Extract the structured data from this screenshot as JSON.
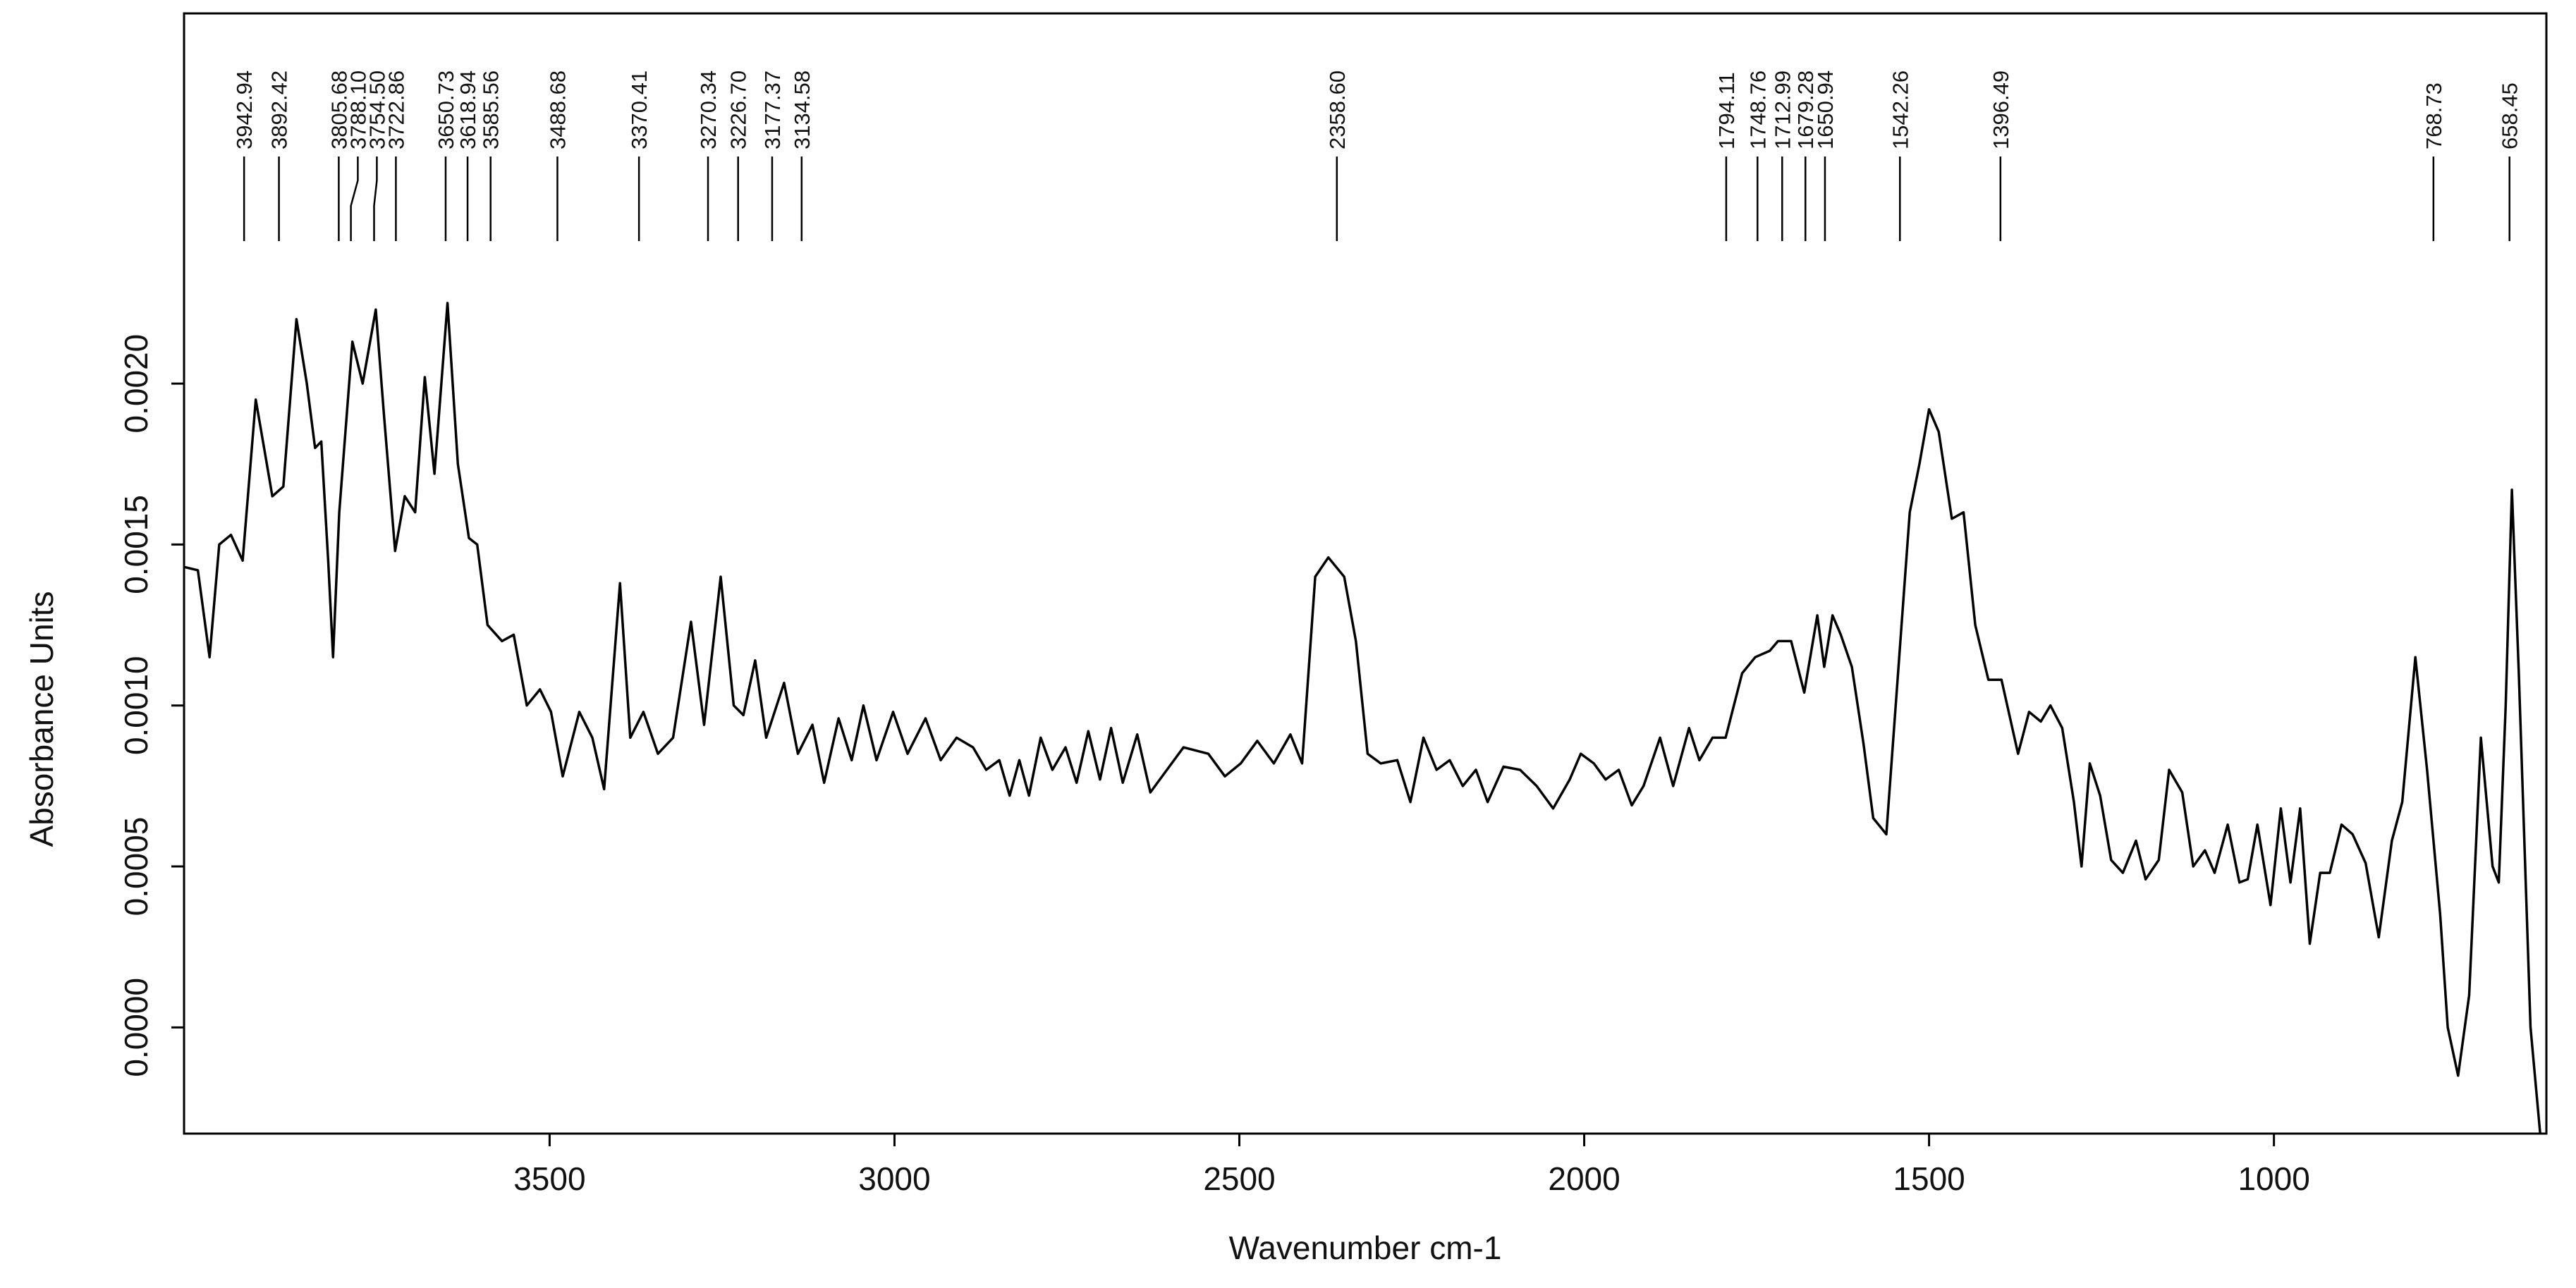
{
  "chart_data": {
    "type": "line",
    "xlabel": "Wavenumber cm-1",
    "ylabel": "Absorbance Units",
    "color": "#000000",
    "xlim": [
      4030,
      605
    ],
    "xticks": [
      3500,
      3000,
      2500,
      2000,
      1500,
      1000
    ],
    "ylim": [
      -0.00033,
      0.00315
    ],
    "yticks": [
      {
        "value": 0,
        "label": "0.0000"
      },
      {
        "value": 0.0005,
        "label": "0.0005"
      },
      {
        "value": 0.001,
        "label": "0.0010"
      },
      {
        "value": 0.0015,
        "label": "0.0015"
      },
      {
        "value": 0.002,
        "label": "0.0020"
      }
    ],
    "grid": false,
    "annotations": [
      {
        "value": 3942.94,
        "label": "3942.94"
      },
      {
        "value": 3892.42,
        "label": "3892.42"
      },
      {
        "value": 3805.68,
        "label": "3805.68"
      },
      {
        "value": 3788.1,
        "label": "3788.10"
      },
      {
        "value": 3754.5,
        "label": "3754.50"
      },
      {
        "value": 3722.86,
        "label": "3722.86"
      },
      {
        "value": 3650.73,
        "label": "3650.73"
      },
      {
        "value": 3618.94,
        "label": "3618.94"
      },
      {
        "value": 3585.56,
        "label": "3585.56"
      },
      {
        "value": 3488.68,
        "label": "3488.68"
      },
      {
        "value": 3370.41,
        "label": "3370.41"
      },
      {
        "value": 3270.34,
        "label": "3270.34"
      },
      {
        "value": 3226.7,
        "label": "3226.70"
      },
      {
        "value": 3177.37,
        "label": "3177.37"
      },
      {
        "value": 3134.58,
        "label": "3134.58"
      },
      {
        "value": 2358.6,
        "label": "2358.60"
      },
      {
        "value": 1794.11,
        "label": "1794.11"
      },
      {
        "value": 1748.76,
        "label": "1748.76"
      },
      {
        "value": 1712.99,
        "label": "1712.99"
      },
      {
        "value": 1679.28,
        "label": "1679.28"
      },
      {
        "value": 1650.94,
        "label": "1650.94"
      },
      {
        "value": 1542.26,
        "label": "1542.26"
      },
      {
        "value": 1396.49,
        "label": "1396.49"
      },
      {
        "value": 768.73,
        "label": "768.73"
      },
      {
        "value": 658.45,
        "label": "658.45"
      }
    ],
    "x": [
      4029,
      4010,
      3993,
      3979,
      3962,
      3945,
      3926,
      3914,
      3902,
      3886,
      3867,
      3852,
      3840,
      3831,
      3821,
      3814,
      3805,
      3786,
      3771,
      3752,
      3740,
      3724,
      3710,
      3695,
      3681,
      3667,
      3648,
      3633,
      3617,
      3605,
      3590,
      3569,
      3552,
      3533,
      3514,
      3498,
      3481,
      3457,
      3438,
      3421,
      3398,
      3383,
      3364,
      3343,
      3321,
      3295,
      3276,
      3252,
      3233,
      3219,
      3202,
      3186,
      3160,
      3140,
      3119,
      3102,
      3081,
      3062,
      3045,
      3026,
      3002,
      2981,
      2955,
      2933,
      2910,
      2886,
      2867,
      2848,
      2833,
      2819,
      2805,
      2788,
      2771,
      2752,
      2736,
      2719,
      2702,
      2686,
      2669,
      2648,
      2629,
      2605,
      2581,
      2545,
      2521,
      2498,
      2474,
      2450,
      2426,
      2409,
      2390,
      2371,
      2348,
      2331,
      2314,
      2295,
      2271,
      2252,
      2233,
      2214,
      2195,
      2176,
      2157,
      2140,
      2117,
      2093,
      2069,
      2045,
      2021,
      2005,
      1986,
      1969,
      1950,
      1931,
      1914,
      1890,
      1871,
      1848,
      1833,
      1814,
      1795,
      1771,
      1752,
      1731,
      1719,
      1700,
      1681,
      1662,
      1652,
      1640,
      1628,
      1612,
      1595,
      1581,
      1562,
      1545,
      1528,
      1514,
      1500,
      1486,
      1467,
      1450,
      1433,
      1414,
      1395,
      1371,
      1355,
      1338,
      1324,
      1307,
      1290,
      1279,
      1267,
      1252,
      1236,
      1219,
      1200,
      1186,
      1167,
      1152,
      1133,
      1117,
      1100,
      1086,
      1067,
      1050,
      1038,
      1024,
      1005,
      990,
      976,
      962,
      948,
      933,
      919,
      902,
      886,
      867,
      848,
      829,
      814,
      795,
      778,
      759,
      748,
      733,
      717,
      700,
      683,
      674,
      664,
      655,
      645,
      628,
      614
    ],
    "values": [
      0.00143,
      0.00142,
      0.00115,
      0.0015,
      0.00153,
      0.00145,
      0.00195,
      0.0018,
      0.00165,
      0.00168,
      0.0022,
      0.002,
      0.0018,
      0.00182,
      0.00145,
      0.00115,
      0.0016,
      0.00213,
      0.002,
      0.00223,
      0.0019,
      0.00148,
      0.00165,
      0.0016,
      0.00202,
      0.00172,
      0.00225,
      0.00175,
      0.00152,
      0.0015,
      0.00125,
      0.0012,
      0.00122,
      0.001,
      0.00105,
      0.00098,
      0.00078,
      0.00098,
      0.0009,
      0.00074,
      0.00138,
      0.0009,
      0.00098,
      0.00085,
      0.0009,
      0.00126,
      0.00094,
      0.0014,
      0.001,
      0.00097,
      0.00114,
      0.0009,
      0.00107,
      0.00085,
      0.00094,
      0.00076,
      0.00096,
      0.00083,
      0.001,
      0.00083,
      0.00098,
      0.00085,
      0.00096,
      0.00083,
      0.0009,
      0.00087,
      0.0008,
      0.00083,
      0.00072,
      0.00083,
      0.00072,
      0.0009,
      0.0008,
      0.00087,
      0.00076,
      0.00092,
      0.00077,
      0.00093,
      0.00076,
      0.00091,
      0.00073,
      0.0008,
      0.00087,
      0.00085,
      0.00078,
      0.00082,
      0.00089,
      0.00082,
      0.00091,
      0.00082,
      0.0014,
      0.00146,
      0.0014,
      0.0012,
      0.00085,
      0.00082,
      0.00083,
      0.0007,
      0.0009,
      0.0008,
      0.00083,
      0.00075,
      0.0008,
      0.0007,
      0.00081,
      0.0008,
      0.00075,
      0.00068,
      0.00077,
      0.00085,
      0.00082,
      0.00077,
      0.0008,
      0.00069,
      0.00075,
      0.0009,
      0.00075,
      0.00093,
      0.00083,
      0.0009,
      0.0009,
      0.0011,
      0.00115,
      0.00117,
      0.0012,
      0.0012,
      0.00104,
      0.00128,
      0.00112,
      0.00128,
      0.00122,
      0.00112,
      0.00088,
      0.00065,
      0.0006,
      0.0011,
      0.0016,
      0.00175,
      0.00192,
      0.00185,
      0.00158,
      0.0016,
      0.00125,
      0.00108,
      0.00108,
      0.00085,
      0.00098,
      0.00095,
      0.001,
      0.00093,
      0.0007,
      0.0005,
      0.00082,
      0.00072,
      0.00052,
      0.00048,
      0.00058,
      0.00046,
      0.00052,
      0.0008,
      0.00073,
      0.0005,
      0.00055,
      0.00048,
      0.00063,
      0.00045,
      0.00046,
      0.00063,
      0.00038,
      0.00068,
      0.00045,
      0.00068,
      0.00026,
      0.00048,
      0.00048,
      0.00063,
      0.0006,
      0.00051,
      0.00028,
      0.00058,
      0.0007,
      0.00115,
      0.0008,
      0.00035,
      0,
      -0.00015,
      0.0001,
      0.0009,
      0.0005,
      0.00045,
      0.001,
      0.00167,
      0.0011,
      0,
      -0.00033
    ]
  }
}
